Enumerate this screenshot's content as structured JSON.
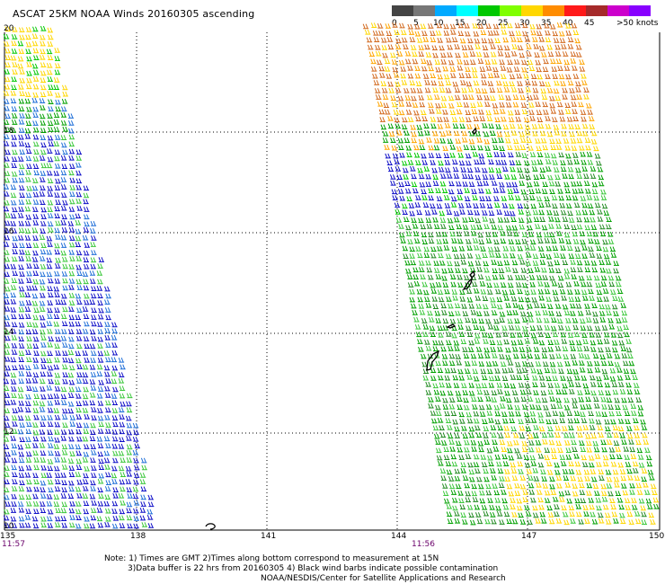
{
  "title": "ASCAT 25KM NOAA Winds 20160305 ascending",
  "scale": {
    "colors": [
      "#444444",
      "#777777",
      "#00aaff",
      "#00ffff",
      "#00c800",
      "#7fff00",
      "#ffd700",
      "#ff8c00",
      "#ff1a1a",
      "#a52a2a",
      "#cc00cc",
      "#8800ff"
    ],
    "labels": [
      "0",
      "5",
      "10",
      "15",
      "20",
      "25",
      "30",
      "35",
      "40",
      "45"
    ],
    "max_label": ">50 knots"
  },
  "lat_labels": [
    "20",
    "18",
    "16",
    "14",
    "12",
    "10"
  ],
  "lon_labels": [
    "135",
    "138",
    "141",
    "144",
    "147",
    "150"
  ],
  "times": {
    "left": "11:57",
    "right": "11:56"
  },
  "notes": {
    "line1": "Note: 1) Times are GMT 2)Times along bottom correspond to measurement at 15N",
    "line2": "3)Data buffer is 22 hrs from 20160305 4) Black wind barbs indicate possible contamination",
    "line3": "NOAA/NESDIS/Center for Satellite Applications and Research"
  }
}
